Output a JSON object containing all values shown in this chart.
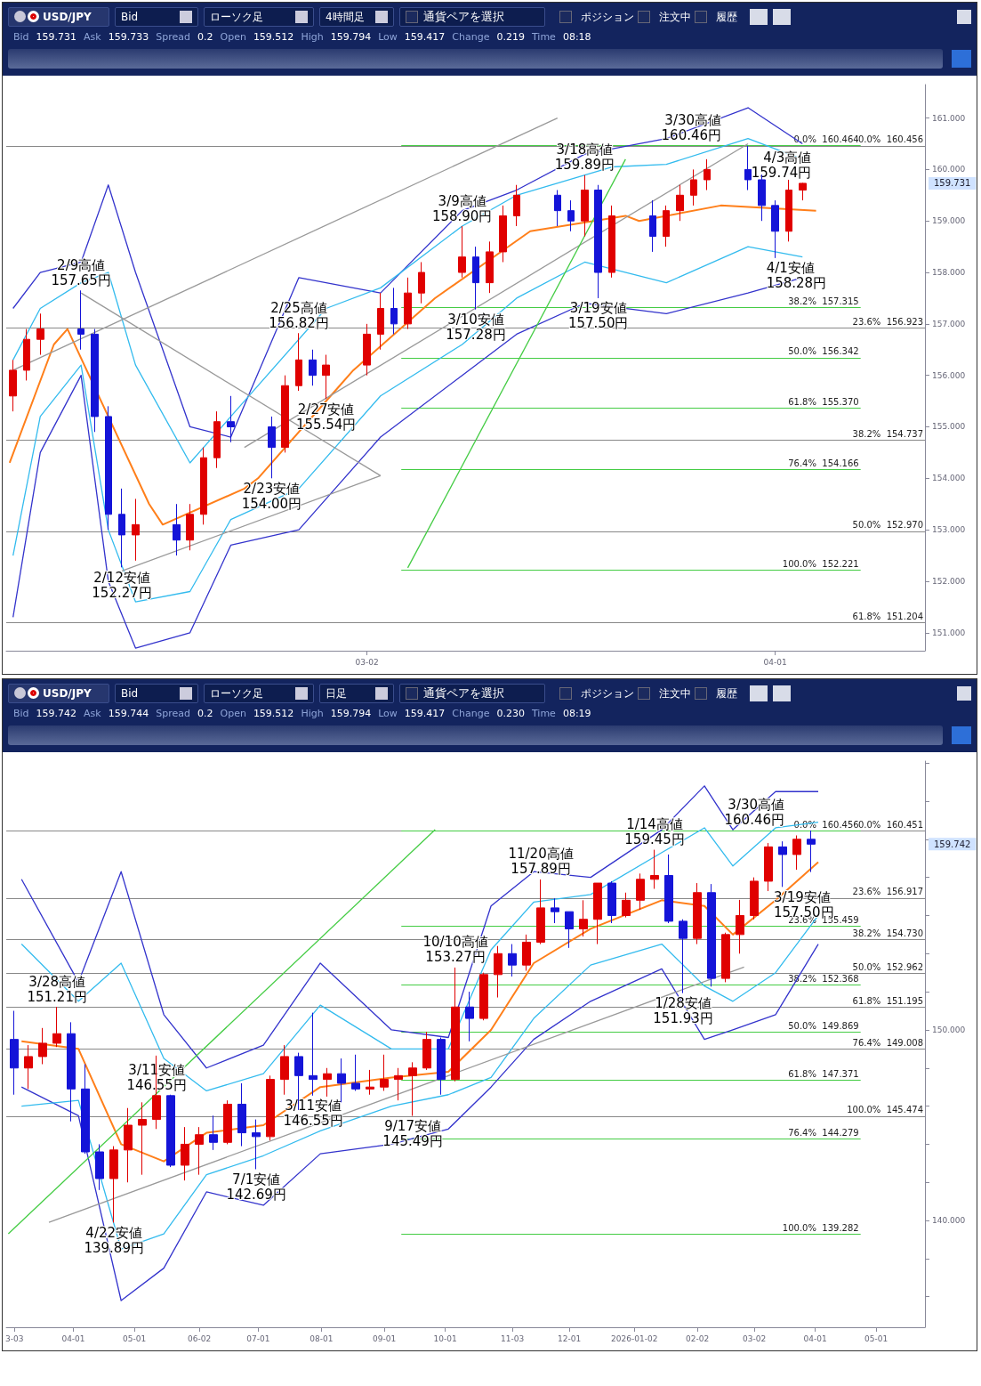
{
  "chart_data": [
    {
      "type": "candlestick",
      "x": [
        "2026-02-04",
        "2026-02-05",
        "2026-02-06",
        "2026-02-09",
        "2026-02-10",
        "2026-02-11",
        "2026-02-12",
        "2026-02-13",
        "2026-02-16",
        "2026-02-17",
        "2026-02-18",
        "2026-02-19",
        "2026-02-20",
        "2026-02-23",
        "2026-02-24",
        "2026-02-25",
        "2026-02-26",
        "2026-02-27",
        "2026-03-02",
        "2026-03-03",
        "2026-03-04",
        "2026-03-05",
        "2026-03-06",
        "2026-03-09",
        "2026-03-10",
        "2026-03-11",
        "2026-03-12",
        "2026-03-13",
        "2026-03-16",
        "2026-03-17",
        "2026-03-18",
        "2026-03-19",
        "2026-03-20",
        "2026-03-23",
        "2026-03-24",
        "2026-03-25",
        "2026-03-26",
        "2026-03-27",
        "2026-03-30",
        "2026-03-31",
        "2026-04-01",
        "2026-04-02",
        "2026-04-03"
      ],
      "ohlc": [
        [
          155.6,
          156.3,
          155.3,
          156.1
        ],
        [
          156.1,
          156.9,
          155.9,
          156.7
        ],
        [
          156.7,
          157.2,
          156.4,
          156.9
        ],
        [
          156.9,
          157.65,
          156.5,
          156.8
        ],
        [
          156.8,
          156.9,
          154.9,
          155.2
        ],
        [
          155.2,
          155.4,
          153.0,
          153.3
        ],
        [
          153.3,
          153.8,
          152.27,
          152.9
        ],
        [
          152.9,
          153.6,
          152.4,
          153.1
        ],
        [
          153.1,
          153.5,
          152.5,
          152.8
        ],
        [
          152.8,
          153.5,
          152.6,
          153.3
        ],
        [
          153.3,
          154.6,
          153.1,
          154.4
        ],
        [
          154.4,
          155.3,
          154.2,
          155.1
        ],
        [
          155.1,
          155.6,
          154.7,
          155.0
        ],
        [
          155.0,
          155.2,
          154.0,
          154.6
        ],
        [
          154.6,
          156.0,
          154.5,
          155.8
        ],
        [
          155.8,
          156.82,
          155.7,
          156.3
        ],
        [
          156.3,
          156.5,
          155.8,
          156.0
        ],
        [
          156.0,
          156.4,
          155.54,
          156.2
        ],
        [
          156.2,
          157.0,
          156.0,
          156.8
        ],
        [
          156.8,
          157.6,
          156.5,
          157.3
        ],
        [
          157.3,
          157.7,
          156.8,
          157.0
        ],
        [
          157.0,
          157.9,
          156.9,
          157.6
        ],
        [
          157.6,
          158.2,
          157.4,
          158.0
        ],
        [
          158.0,
          158.9,
          157.9,
          158.3
        ],
        [
          158.3,
          158.5,
          157.28,
          157.8
        ],
        [
          157.8,
          158.6,
          157.6,
          158.4
        ],
        [
          158.4,
          159.3,
          158.2,
          159.1
        ],
        [
          159.1,
          159.7,
          158.9,
          159.5
        ],
        [
          159.5,
          159.6,
          158.9,
          159.2
        ],
        [
          159.2,
          159.4,
          158.8,
          159.0
        ],
        [
          159.0,
          159.89,
          158.7,
          159.6
        ],
        [
          159.6,
          159.7,
          157.5,
          158.0
        ],
        [
          158.0,
          159.3,
          157.9,
          159.1
        ],
        [
          159.1,
          159.4,
          158.4,
          158.7
        ],
        [
          158.7,
          159.3,
          158.5,
          159.2
        ],
        [
          159.2,
          159.7,
          159.0,
          159.5
        ],
        [
          159.5,
          160.0,
          159.3,
          159.8
        ],
        [
          159.8,
          160.2,
          159.6,
          160.0
        ],
        [
          160.0,
          160.46,
          159.6,
          159.8
        ],
        [
          159.8,
          159.9,
          159.0,
          159.3
        ],
        [
          159.3,
          159.4,
          158.28,
          158.8
        ],
        [
          158.8,
          159.8,
          158.6,
          159.6
        ],
        [
          159.6,
          159.74,
          159.4,
          159.731
        ]
      ],
      "xlim": [
        "2026-02-03T12:00",
        "2026-04-12"
      ],
      "xticks": [
        {
          "value": "2026-03-02",
          "label": "03-02"
        },
        {
          "value": "2026-04-01",
          "label": "04-01"
        }
      ],
      "ylim": [
        150.65,
        161.65
      ],
      "yticks": [
        {
          "value": 151,
          "label": "151.000"
        },
        {
          "value": 152,
          "label": "152.000"
        },
        {
          "value": 153,
          "label": "153.000"
        },
        {
          "value": 154,
          "label": "154.000"
        },
        {
          "value": 155,
          "label": "155.000"
        },
        {
          "value": 156,
          "label": "156.000"
        },
        {
          "value": 157,
          "label": "157.000"
        },
        {
          "value": 158,
          "label": "158.000"
        },
        {
          "value": 159,
          "label": "159.000"
        },
        {
          "value": 160,
          "label": "160.000"
        },
        {
          "value": 161,
          "label": "161.000"
        }
      ],
      "grid": false,
      "series": [
        {
          "type": "line",
          "color": "#ff7f1a",
          "x": [
            "2026-02-03T18:00",
            "2026-02-07",
            "2026-02-08",
            "2026-02-14",
            "2026-02-15",
            "2026-02-21",
            "2026-02-22",
            "2026-02-28",
            "2026-03-01",
            "2026-03-07",
            "2026-03-14",
            "2026-03-21",
            "2026-03-22",
            "2026-03-28",
            "2026-04-04"
          ],
          "values": [
            154.3,
            156.6,
            156.9,
            153.5,
            153.1,
            153.8,
            154.0,
            155.8,
            156.1,
            157.5,
            158.8,
            159.1,
            159.0,
            159.3,
            159.2
          ]
        },
        {
          "type": "line",
          "color": "#3333cc",
          "x": [
            "2026-02-04",
            "2026-02-06",
            "2026-02-09",
            "2026-02-11",
            "2026-02-13",
            "2026-02-17",
            "2026-02-20",
            "2026-02-25",
            "2026-03-03",
            "2026-03-09",
            "2026-03-13",
            "2026-03-18",
            "2026-03-24",
            "2026-03-30",
            "2026-04-03"
          ],
          "values": [
            157.3,
            158.0,
            158.2,
            159.7,
            158.0,
            155.0,
            154.8,
            157.9,
            157.6,
            159.2,
            159.6,
            160.3,
            160.6,
            161.2,
            160.5
          ]
        },
        {
          "type": "line",
          "color": "#3333cc",
          "x": [
            "2026-02-04",
            "2026-02-06",
            "2026-02-09",
            "2026-02-11",
            "2026-02-13",
            "2026-02-17",
            "2026-02-20",
            "2026-02-25",
            "2026-03-03",
            "2026-03-09",
            "2026-03-13",
            "2026-03-18",
            "2026-03-24",
            "2026-03-30",
            "2026-04-03"
          ],
          "values": [
            151.3,
            154.5,
            156.0,
            152.0,
            150.7,
            151.0,
            152.7,
            153.0,
            154.8,
            156.0,
            156.8,
            157.4,
            157.2,
            157.6,
            157.9
          ]
        },
        {
          "type": "line",
          "color": "#33bbee",
          "x": [
            "2026-02-04",
            "2026-02-06",
            "2026-02-09",
            "2026-02-11",
            "2026-02-13",
            "2026-02-17",
            "2026-02-20",
            "2026-02-27",
            "2026-03-03",
            "2026-03-09",
            "2026-03-13",
            "2026-03-20",
            "2026-03-24",
            "2026-03-30",
            "2026-04-03"
          ],
          "values": [
            156.3,
            157.3,
            157.8,
            158.0,
            156.2,
            154.3,
            155.2,
            157.3,
            157.7,
            158.9,
            159.5,
            160.05,
            160.1,
            160.6,
            160.2
          ]
        },
        {
          "type": "line",
          "color": "#33bbee",
          "x": [
            "2026-02-04",
            "2026-02-06",
            "2026-02-09",
            "2026-02-11",
            "2026-02-13",
            "2026-02-17",
            "2026-02-20",
            "2026-02-25",
            "2026-03-03",
            "2026-03-09",
            "2026-03-13",
            "2026-03-18",
            "2026-03-24",
            "2026-03-30",
            "2026-04-03"
          ],
          "values": [
            152.5,
            155.2,
            156.2,
            153.0,
            151.6,
            151.8,
            153.2,
            153.8,
            155.6,
            156.6,
            157.5,
            158.2,
            157.8,
            158.5,
            158.3
          ]
        },
        {
          "type": "line",
          "color": "#999999",
          "x": [
            "2026-02-04",
            "2026-03-16"
          ],
          "values": [
            156.1,
            161.0
          ]
        },
        {
          "type": "line",
          "color": "#999999",
          "x": [
            "2026-02-09",
            "2026-03-03"
          ],
          "values": [
            157.6,
            154.05
          ]
        },
        {
          "type": "line",
          "color": "#999999",
          "x": [
            "2026-02-12",
            "2026-03-03"
          ],
          "values": [
            152.2,
            154.05
          ]
        },
        {
          "type": "line",
          "color": "#999999",
          "x": [
            "2026-02-21",
            "2026-03-30"
          ],
          "values": [
            154.6,
            160.5
          ]
        },
        {
          "type": "line",
          "color": "#44cc44",
          "x": [
            "2026-03-05",
            "2026-03-21"
          ],
          "values": [
            152.26,
            160.2
          ]
        }
      ],
      "ref_lines": [
        {
          "axis": "y",
          "value": 160.464,
          "label": "0.0%  160.464",
          "color": "#44cc44"
        },
        {
          "axis": "y",
          "value": 157.315,
          "label": "38.2%  157.315",
          "color": "#44cc44"
        },
        {
          "axis": "y",
          "value": 156.342,
          "label": "50.0%  156.342",
          "color": "#44cc44"
        },
        {
          "axis": "y",
          "value": 155.37,
          "label": "61.8%  155.370",
          "color": "#44cc44"
        },
        {
          "axis": "y",
          "value": 154.166,
          "label": "76.4%  154.166",
          "color": "#44cc44"
        },
        {
          "axis": "y",
          "value": 152.221,
          "label": "100.0%  152.221",
          "color": "#44cc44"
        },
        {
          "axis": "y",
          "value": 160.456,
          "label": "0.0%  160.456",
          "color": "#888888"
        },
        {
          "axis": "y",
          "value": 156.923,
          "label": "23.6%  156.923",
          "color": "#888888"
        },
        {
          "axis": "y",
          "value": 154.737,
          "label": "38.2%  154.737",
          "color": "#888888"
        },
        {
          "axis": "y",
          "value": 152.97,
          "label": "50.0%  152.970",
          "color": "#888888"
        },
        {
          "axis": "y",
          "value": 151.204,
          "label": "61.8%  151.204",
          "color": "#888888"
        }
      ],
      "annotations": [
        "USD/JPY",
        "Bid",
        "ローソク足",
        "4時間足",
        "通貨ペアを選択",
        "ポジション",
        "注文中",
        "履歴",
        "Bid",
        "159.731",
        "Ask",
        "159.733",
        "Spread",
        "0.2",
        "Open",
        "159.512",
        "High",
        "159.794",
        "Low",
        "159.417",
        "Change",
        "0.219",
        "Time",
        "08:18",
        "159.731",
        {
          "text": "2/9高値\n157.65円",
          "x": "2026-02-09",
          "y": 157.65
        },
        {
          "text": "2/12安値\n152.27円",
          "x": "2026-02-12",
          "y": 152.27
        },
        {
          "text": "2/23安値\n154.00円",
          "x": "2026-02-23",
          "y": 154.0
        },
        {
          "text": "2/25高値\n156.82円",
          "x": "2026-02-25",
          "y": 156.82
        },
        {
          "text": "2/27安値\n155.54円",
          "x": "2026-02-27",
          "y": 155.54
        },
        {
          "text": "3/9高値\n158.90円",
          "x": "2026-03-09",
          "y": 158.9
        },
        {
          "text": "3/10安値\n157.28円",
          "x": "2026-03-10",
          "y": 157.28
        },
        {
          "text": "3/18高値\n159.89円",
          "x": "2026-03-18",
          "y": 159.89
        },
        {
          "text": "3/19安値\n157.50円",
          "x": "2026-03-19",
          "y": 157.5
        },
        {
          "text": "3/30高値\n160.46円",
          "x": "2026-03-30",
          "y": 160.46
        },
        {
          "text": "4/1安値\n158.28円",
          "x": "2026-04-01",
          "y": 158.28
        },
        {
          "text": "4/3高値\n159.74円",
          "x": "2026-04-03",
          "y": 159.74
        }
      ]
    },
    {
      "type": "candlestick",
      "x": [
        "2025-03-03",
        "2025-03-10",
        "2025-03-17",
        "2025-03-24",
        "2025-03-31",
        "2025-04-07",
        "2025-04-14",
        "2025-04-21",
        "2025-04-28",
        "2025-05-05",
        "2025-05-12",
        "2025-05-19",
        "2025-05-26",
        "2025-06-02",
        "2025-06-09",
        "2025-06-16",
        "2025-06-23",
        "2025-06-30",
        "2025-07-07",
        "2025-07-14",
        "2025-07-21",
        "2025-07-28",
        "2025-08-04",
        "2025-08-11",
        "2025-08-18",
        "2025-08-25",
        "2025-09-01",
        "2025-09-08",
        "2025-09-15",
        "2025-09-22",
        "2025-09-29",
        "2025-10-06",
        "2025-10-13",
        "2025-10-20",
        "2025-10-27",
        "2025-11-03",
        "2025-11-10",
        "2025-11-17",
        "2025-11-24",
        "2025-12-01",
        "2025-12-08",
        "2025-12-15",
        "2025-12-22",
        "2025-12-29",
        "2026-01-05",
        "2026-01-12",
        "2026-01-19",
        "2026-01-26",
        "2026-02-02",
        "2026-02-09",
        "2026-02-16",
        "2026-02-23",
        "2026-03-02",
        "2026-03-09",
        "2026-03-16",
        "2026-03-23",
        "2026-03-30"
      ],
      "ohlc": [
        [
          149.5,
          151.0,
          146.6,
          148.0
        ],
        [
          148.0,
          149.2,
          146.9,
          148.6
        ],
        [
          148.6,
          150.1,
          148.2,
          149.3
        ],
        [
          149.3,
          151.21,
          149.1,
          149.8
        ],
        [
          149.8,
          150.4,
          145.2,
          146.9
        ],
        [
          146.9,
          148.2,
          143.5,
          143.6
        ],
        [
          143.6,
          144.0,
          141.6,
          142.2
        ],
        [
          142.2,
          143.9,
          139.89,
          143.7
        ],
        [
          143.7,
          145.9,
          142.0,
          145.0
        ],
        [
          145.0,
          146.2,
          142.4,
          145.3
        ],
        [
          145.3,
          148.65,
          144.8,
          146.55
        ],
        [
          146.55,
          146.6,
          142.8,
          142.9
        ],
        [
          142.9,
          144.9,
          142.1,
          144.0
        ],
        [
          144.0,
          144.9,
          142.4,
          144.5
        ],
        [
          144.5,
          145.5,
          143.7,
          144.1
        ],
        [
          144.1,
          146.3,
          144.0,
          146.1
        ],
        [
          146.1,
          147.2,
          143.9,
          144.6
        ],
        [
          144.6,
          145.3,
          142.69,
          144.4
        ],
        [
          144.4,
          147.6,
          144.2,
          147.4
        ],
        [
          147.4,
          149.2,
          146.6,
          148.6
        ],
        [
          148.6,
          148.8,
          145.8,
          147.6
        ],
        [
          147.6,
          150.9,
          146.55,
          147.4
        ],
        [
          147.4,
          148.0,
          146.5,
          147.7
        ],
        [
          147.7,
          148.5,
          146.2,
          147.2
        ],
        [
          147.2,
          148.7,
          146.8,
          146.9
        ],
        [
          146.9,
          147.9,
          146.6,
          147.0
        ],
        [
          147.0,
          148.7,
          146.8,
          147.4
        ],
        [
          147.4,
          148.0,
          146.3,
          147.6
        ],
        [
          147.6,
          148.3,
          145.49,
          148.0
        ],
        [
          148.0,
          149.9,
          147.9,
          149.5
        ],
        [
          149.5,
          149.6,
          146.6,
          147.4
        ],
        [
          147.4,
          153.27,
          147.3,
          151.2
        ],
        [
          151.2,
          152.0,
          149.4,
          150.6
        ],
        [
          150.6,
          153.0,
          150.5,
          152.9
        ],
        [
          152.9,
          154.4,
          151.7,
          154.0
        ],
        [
          154.0,
          154.5,
          152.8,
          153.4
        ],
        [
          153.4,
          155.0,
          153.1,
          154.6
        ],
        [
          154.6,
          157.89,
          154.5,
          156.4
        ],
        [
          156.4,
          156.9,
          155.6,
          156.2
        ],
        [
          156.2,
          156.2,
          154.3,
          155.3
        ],
        [
          155.3,
          156.8,
          154.9,
          155.8
        ],
        [
          155.8,
          157.7,
          154.5,
          157.7
        ],
        [
          157.7,
          157.8,
          155.6,
          156.0
        ],
        [
          156.0,
          157.2,
          155.9,
          156.8
        ],
        [
          156.8,
          158.2,
          156.3,
          157.9
        ],
        [
          157.9,
          159.45,
          157.4,
          158.1
        ],
        [
          158.1,
          159.2,
          155.6,
          155.7
        ],
        [
          155.7,
          155.8,
          151.93,
          154.8
        ],
        [
          154.8,
          157.7,
          154.5,
          157.2
        ],
        [
          157.2,
          157.65,
          152.27,
          152.7
        ],
        [
          152.7,
          155.1,
          152.5,
          155.0
        ],
        [
          155.0,
          156.82,
          154.0,
          156.0
        ],
        [
          156.0,
          158.0,
          155.8,
          157.8
        ],
        [
          157.8,
          159.8,
          157.28,
          159.6
        ],
        [
          159.6,
          159.89,
          157.5,
          159.2
        ],
        [
          159.2,
          160.2,
          158.4,
          160.0
        ],
        [
          160.0,
          160.46,
          158.28,
          159.742
        ]
      ],
      "xlim": [
        "2025-02-27",
        "2026-05-25"
      ],
      "xticks": [
        {
          "value": "2025-03-03",
          "label": "3-03"
        },
        {
          "value": "2025-04-01",
          "label": "04-01"
        },
        {
          "value": "2025-05-01",
          "label": "05-01"
        },
        {
          "value": "2025-06-02",
          "label": "06-02"
        },
        {
          "value": "2025-07-01",
          "label": "07-01"
        },
        {
          "value": "2025-08-01",
          "label": "08-01"
        },
        {
          "value": "2025-09-01",
          "label": "09-01"
        },
        {
          "value": "2025-10-01",
          "label": "10-01"
        },
        {
          "value": "2025-11-03",
          "label": "11-03"
        },
        {
          "value": "2025-12-01",
          "label": "12-01"
        },
        {
          "value": "2026-01-02",
          "label": "2026-01-02"
        },
        {
          "value": "2026-02-02",
          "label": "02-02"
        },
        {
          "value": "2026-03-02",
          "label": "03-02"
        },
        {
          "value": "2026-04-01",
          "label": "04-01"
        },
        {
          "value": "2026-05-01",
          "label": "05-01"
        }
      ],
      "ylim": [
        134.4,
        164.1
      ],
      "yticks": [
        {
          "value": 136,
          "label": null
        },
        {
          "value": 138,
          "label": null
        },
        {
          "value": 140,
          "label": "140.000"
        },
        {
          "value": 142,
          "label": null
        },
        {
          "value": 144,
          "label": null
        },
        {
          "value": 146,
          "label": null
        },
        {
          "value": 148,
          "label": null
        },
        {
          "value": 150,
          "label": "150.000"
        },
        {
          "value": 152,
          "label": null
        },
        {
          "value": 154,
          "label": null
        },
        {
          "value": 156,
          "label": null
        },
        {
          "value": 158,
          "label": null
        },
        {
          "value": 160,
          "label": null
        },
        {
          "value": 162,
          "label": null
        },
        {
          "value": 164,
          "label": null
        }
      ],
      "grid": false,
      "series": [
        {
          "type": "line",
          "color": "#ff7f1a",
          "x": [
            "2025-03-06T12:00",
            "2025-04-03T12:00",
            "2025-04-24T12:00",
            "2025-05-15T12:00",
            "2025-06-05T12:00",
            "2025-07-03T12:00",
            "2025-07-31T12:00",
            "2025-09-04T12:00",
            "2025-10-02T12:00",
            "2025-10-23T12:00",
            "2025-11-13T12:00",
            "2025-12-11T12:00",
            "2026-01-15T12:00",
            "2026-02-05T12:00",
            "2026-02-19T12:00",
            "2026-03-12T12:00",
            "2026-04-02T12:00"
          ],
          "values": [
            149.4,
            149.0,
            144.0,
            143.1,
            144.6,
            145.0,
            147.0,
            147.5,
            147.8,
            150.0,
            153.5,
            155.3,
            156.8,
            156.5,
            155.0,
            156.8,
            158.8
          ]
        },
        {
          "type": "line",
          "color": "#3333cc",
          "x": [
            "2025-03-06T12:00",
            "2025-04-03T12:00",
            "2025-04-24T12:00",
            "2025-05-15T12:00",
            "2025-06-05T12:00",
            "2025-07-03T12:00",
            "2025-07-31T12:00",
            "2025-09-04T12:00",
            "2025-10-02T12:00",
            "2025-10-23T12:00",
            "2025-11-13T12:00",
            "2025-12-11T12:00",
            "2026-01-15T12:00",
            "2026-02-05T12:00",
            "2026-02-19T12:00",
            "2026-03-12T12:00",
            "2026-04-02T12:00"
          ],
          "values": [
            157.9,
            152.5,
            158.3,
            150.8,
            148.0,
            149.2,
            153.5,
            150.0,
            149.6,
            156.5,
            158.3,
            158.0,
            160.5,
            162.8,
            160.5,
            162.5,
            162.5
          ]
        },
        {
          "type": "line",
          "color": "#3333cc",
          "x": [
            "2025-03-06T12:00",
            "2025-04-03T12:00",
            "2025-04-24T12:00",
            "2025-05-15T12:00",
            "2025-06-05T12:00",
            "2025-07-03T12:00",
            "2025-07-31T12:00",
            "2025-09-04T12:00",
            "2025-10-02T12:00",
            "2025-10-23T12:00",
            "2025-11-13T12:00",
            "2025-12-11T12:00",
            "2026-01-15T12:00",
            "2026-02-05T12:00",
            "2026-02-19T12:00",
            "2026-03-12T12:00",
            "2026-04-02T12:00"
          ],
          "values": [
            147.0,
            145.5,
            135.8,
            137.5,
            141.5,
            140.8,
            143.5,
            144.0,
            144.8,
            147.0,
            149.5,
            151.5,
            153.2,
            149.5,
            150.0,
            150.8,
            154.5
          ]
        },
        {
          "type": "line",
          "color": "#33bbee",
          "x": [
            "2025-03-06T12:00",
            "2025-04-03T12:00",
            "2025-04-24T12:00",
            "2025-05-15T12:00",
            "2025-06-05T12:00",
            "2025-07-03T12:00",
            "2025-07-31T12:00",
            "2025-09-04T12:00",
            "2025-10-02T12:00",
            "2025-10-23T12:00",
            "2025-11-13T12:00",
            "2025-12-11T12:00",
            "2026-01-15T12:00",
            "2026-02-05T12:00",
            "2026-02-19T12:00",
            "2026-03-12T12:00",
            "2026-04-02T12:00"
          ],
          "values": [
            154.5,
            151.5,
            153.5,
            148.5,
            146.8,
            147.7,
            151.3,
            149.0,
            149.0,
            154.2,
            156.7,
            157.1,
            159.3,
            160.6,
            158.6,
            160.6,
            160.9
          ]
        },
        {
          "type": "line",
          "color": "#33bbee",
          "x": [
            "2025-03-06T12:00",
            "2025-04-03T12:00",
            "2025-04-24T12:00",
            "2025-05-15T12:00",
            "2025-06-05T12:00",
            "2025-07-03T12:00",
            "2025-07-31T12:00",
            "2025-09-04T12:00",
            "2025-10-02T12:00",
            "2025-10-23T12:00",
            "2025-11-13T12:00",
            "2025-12-11T12:00",
            "2026-01-15T12:00",
            "2026-02-05T12:00",
            "2026-02-19T12:00",
            "2026-03-12T12:00",
            "2026-04-02T12:00"
          ],
          "values": [
            146.0,
            146.3,
            138.5,
            139.3,
            142.4,
            143.4,
            144.7,
            146.0,
            146.6,
            147.5,
            150.6,
            153.4,
            154.5,
            152.3,
            151.5,
            153.0,
            156.0
          ]
        },
        {
          "type": "line",
          "color": "#999999",
          "x": [
            "2025-03-20",
            "2026-02-25"
          ],
          "values": [
            139.9,
            153.3
          ]
        },
        {
          "type": "line",
          "color": "#44cc44",
          "x": [
            "2025-02-28",
            "2025-09-26"
          ],
          "values": [
            139.3,
            160.5
          ]
        }
      ],
      "ref_lines": [
        {
          "axis": "y",
          "value": 160.456,
          "label": "0.0%  160.456",
          "color": "#44cc44"
        },
        {
          "axis": "y",
          "value": 155.459,
          "label": "23.6%  155.459",
          "color": "#44cc44"
        },
        {
          "axis": "y",
          "value": 152.368,
          "label": "38.2%  152.368",
          "color": "#44cc44"
        },
        {
          "axis": "y",
          "value": 149.869,
          "label": "50.0%  149.869",
          "color": "#44cc44"
        },
        {
          "axis": "y",
          "value": 147.371,
          "label": "61.8%  147.371",
          "color": "#44cc44"
        },
        {
          "axis": "y",
          "value": 144.279,
          "label": "76.4%  144.279",
          "color": "#44cc44"
        },
        {
          "axis": "y",
          "value": 139.282,
          "label": "100.0%  139.282",
          "color": "#44cc44"
        },
        {
          "axis": "y",
          "value": 160.451,
          "label": "0.0%  160.451",
          "color": "#888888"
        },
        {
          "axis": "y",
          "value": 156.917,
          "label": "23.6%  156.917",
          "color": "#888888"
        },
        {
          "axis": "y",
          "value": 154.73,
          "label": "38.2%  154.730",
          "color": "#888888"
        },
        {
          "axis": "y",
          "value": 152.962,
          "label": "50.0%  152.962",
          "color": "#888888"
        },
        {
          "axis": "y",
          "value": 151.195,
          "label": "61.8%  151.195",
          "color": "#888888"
        },
        {
          "axis": "y",
          "value": 149.008,
          "label": "76.4%  149.008",
          "color": "#888888"
        },
        {
          "axis": "y",
          "value": 145.474,
          "label": "100.0%  145.474",
          "color": "#888888"
        }
      ],
      "annotations": [
        "USD/JPY",
        "Bid",
        "ローソク足",
        "日足",
        "通貨ペアを選択",
        "ポジション",
        "注文中",
        "履歴",
        "Bid",
        "159.742",
        "Ask",
        "159.744",
        "Spread",
        "0.2",
        "Open",
        "159.512",
        "High",
        "159.794",
        "Low",
        "159.417",
        "Change",
        "0.230",
        "Time",
        "08:19",
        "159.742",
        {
          "text": "3/28高値\n151.21円",
          "x": "2025-03-24",
          "y": 151.21
        },
        {
          "text": "4/22安値\n139.89円",
          "x": "2025-04-21",
          "y": 139.89
        },
        {
          "text": "3/11安値\n146.55円",
          "x": "2025-05-12",
          "y": 146.55
        },
        {
          "text": "7/1安値\n142.69円",
          "x": "2025-06-30",
          "y": 142.69
        },
        {
          "text": "3/11安値\n146.55円",
          "x": "2025-07-28",
          "y": 146.55
        },
        {
          "text": "9/17安値\n145.49円",
          "x": "2025-09-15",
          "y": 145.49
        },
        {
          "text": "10/10高値\n153.27円",
          "x": "2025-10-06",
          "y": 153.27
        },
        {
          "text": "11/20高値\n157.89円",
          "x": "2025-11-17",
          "y": 157.89
        },
        {
          "text": "1/14高値\n159.45円",
          "x": "2026-01-12",
          "y": 159.45
        },
        {
          "text": "1/28安値\n151.93円",
          "x": "2026-01-26",
          "y": 151.93
        },
        {
          "text": "3/19安値\n157.50円",
          "x": "2026-03-16",
          "y": 157.5
        },
        {
          "text": "3/30高値\n160.46円",
          "x": "2026-03-30",
          "y": 160.46
        }
      ]
    }
  ]
}
